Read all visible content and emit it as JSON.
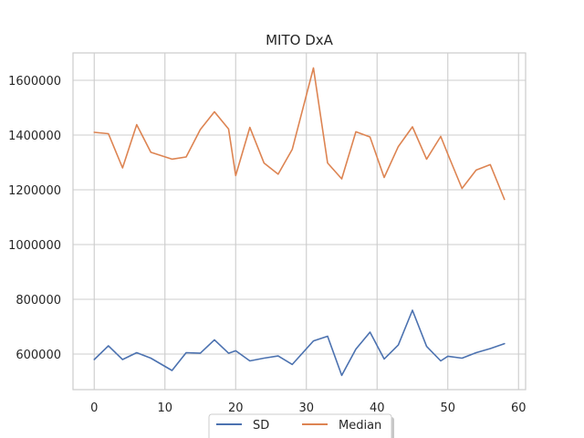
{
  "chart_data": {
    "type": "line",
    "title": "MITO DxA",
    "xlabel": "",
    "ylabel": "",
    "xlim": [
      -3,
      61
    ],
    "ylim": [
      470000,
      1700000
    ],
    "x_ticks": [
      0,
      10,
      20,
      30,
      40,
      50,
      60
    ],
    "y_ticks": [
      600000,
      800000,
      1000000,
      1200000,
      1400000,
      1600000
    ],
    "x_tick_labels": [
      "0",
      "10",
      "20",
      "30",
      "40",
      "50",
      "60"
    ],
    "y_tick_labels": [
      "600000",
      "800000",
      "1000000",
      "1200000",
      "1400000",
      "1600000"
    ],
    "grid": true,
    "legend_placement": "bottom-center",
    "x": [
      0,
      2,
      4,
      6,
      8,
      11,
      13,
      15,
      17,
      19,
      20,
      22,
      24,
      26,
      28,
      31,
      33,
      35,
      37,
      39,
      41,
      43,
      45,
      47,
      49,
      50,
      52,
      54,
      56,
      58
    ],
    "series": [
      {
        "name": "SD",
        "color": "#4c72b0",
        "values": [
          580000,
          630000,
          580000,
          605000,
          585000,
          540000,
          605000,
          603000,
          652000,
          603000,
          612000,
          575000,
          585000,
          593000,
          562000,
          648000,
          665000,
          522000,
          618000,
          680000,
          582000,
          633000,
          760000,
          628000,
          575000,
          592000,
          585000,
          605000,
          620000,
          638000
        ]
      },
      {
        "name": "Median",
        "color": "#dd8452",
        "values": [
          1410000,
          1405000,
          1280000,
          1438000,
          1337000,
          1312000,
          1320000,
          1420000,
          1485000,
          1422000,
          1252000,
          1428000,
          1298000,
          1257000,
          1348000,
          1645000,
          1298000,
          1240000,
          1412000,
          1393000,
          1245000,
          1358000,
          1430000,
          1312000,
          1395000,
          1330000,
          1205000,
          1272000,
          1292000,
          1165000
        ]
      }
    ]
  }
}
